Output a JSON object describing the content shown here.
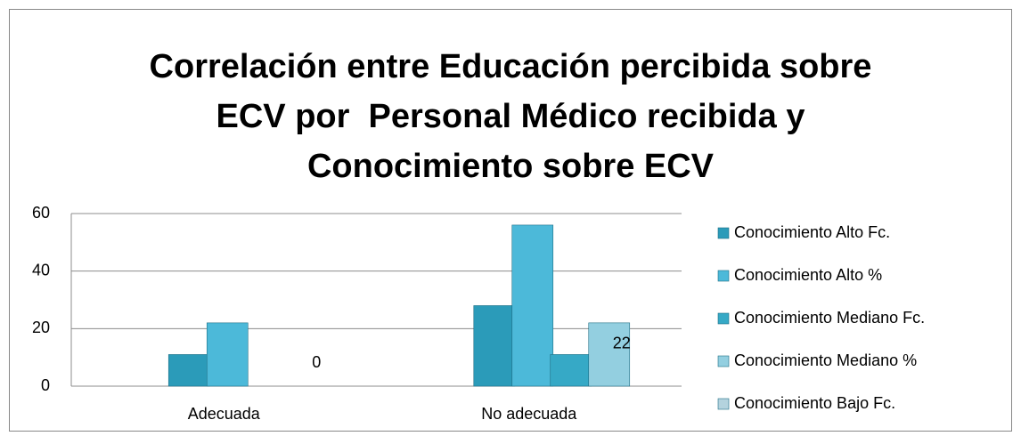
{
  "chart_data": {
    "type": "bar",
    "title": [
      "Correlación entre Educación percibida sobre",
      "ECV por  Personal Médico recibida y",
      "Conocimiento sobre ECV"
    ],
    "categories": [
      "Adecuada",
      "No adecuada"
    ],
    "series": [
      {
        "name": "Conocimiento Alto Fc.",
        "color": "#2b9bb9",
        "values": [
          11,
          28
        ]
      },
      {
        "name": "Conocimiento Alto %",
        "color": "#4cb9d9",
        "values": [
          22,
          56
        ]
      },
      {
        "name": "Conocimiento Mediano Fc.",
        "color": "#36a9c6",
        "values": [
          0,
          11
        ]
      },
      {
        "name": "Conocimiento Mediano %",
        "color": "#93cfe0",
        "values": [
          0,
          22
        ],
        "labels": true
      },
      {
        "name": "Conocimiento Bajo Fc.",
        "color": "#b4d3de",
        "values": [
          null,
          null
        ]
      }
    ],
    "ylim": [
      0,
      60
    ],
    "yticks": [
      0,
      20,
      40,
      60
    ],
    "grid": true,
    "legend": "right"
  }
}
